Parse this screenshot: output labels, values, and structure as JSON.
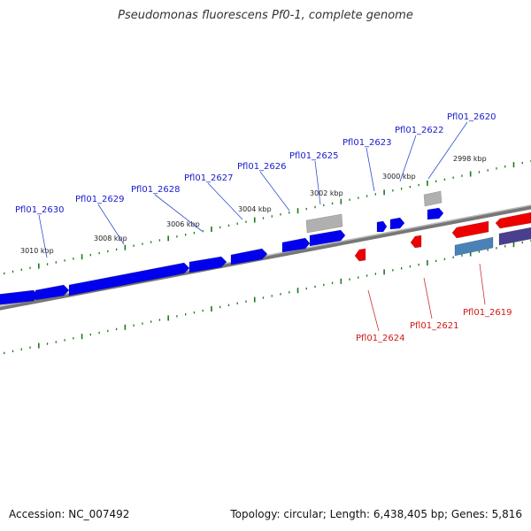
{
  "title": "Pseudomonas fluorescens Pf0-1, complete genome",
  "footer": {
    "accession": "Accession: NC_007492",
    "topology": "Topology: circular; Length: 6,438,405 bp; Genes: 5,816"
  },
  "colors": {
    "forward_gene": "#0000ee",
    "reverse_gene": "#ee0000",
    "pseudo_gene": "#b0b0b0",
    "steel_gene": "#4a82b8",
    "slate_gene": "#4a3f8e",
    "tick": "#1a7a1a",
    "backbone": "#888888"
  },
  "position_labels": [
    "2998 kbp",
    "3000 kbp",
    "3002 kbp",
    "3004 kbp",
    "3006 kbp",
    "3008 kbp",
    "3010 kbp"
  ],
  "top_gene_labels": [
    "Pfl01_2620",
    "Pfl01_2622",
    "Pfl01_2623",
    "Pfl01_2625",
    "Pfl01_2626",
    "Pfl01_2627",
    "Pfl01_2628",
    "Pfl01_2629",
    "Pfl01_2630"
  ],
  "bottom_gene_labels": [
    "Pfl01_2619",
    "Pfl01_2621",
    "Pfl01_2624"
  ]
}
